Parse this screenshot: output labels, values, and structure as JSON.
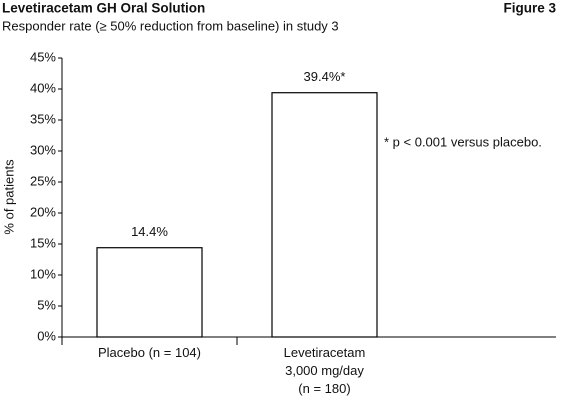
{
  "chart_data": {
    "type": "bar",
    "title": "Levetiracetam GH Oral Solution",
    "figure_label": "Figure 3",
    "subtitle": "Responder rate (≥ 50% reduction from baseline) in study 3",
    "y_label": "% of patients",
    "annotation": "* p < 0.001 versus placebo.",
    "categories": [
      "Placebo (n = 104)",
      "Levetiracetam\n3,000 mg/day\n(n = 180)"
    ],
    "values": [
      14.4,
      39.4
    ],
    "value_labels": [
      "14.4%",
      "39.4%*"
    ],
    "color": "#ffffff",
    "ylim": [
      0,
      45
    ],
    "yticks": [
      {
        "value": 0,
        "label": "0%"
      },
      {
        "value": 5,
        "label": "5%"
      },
      {
        "value": 10,
        "label": "10%"
      },
      {
        "value": 15,
        "label": "15%"
      },
      {
        "value": 20,
        "label": "20%"
      },
      {
        "value": 25,
        "label": "25%"
      },
      {
        "value": 30,
        "label": "30%"
      },
      {
        "value": 35,
        "label": "35%"
      },
      {
        "value": 40,
        "label": "40%"
      },
      {
        "value": 45,
        "label": "45%"
      }
    ],
    "grid": false
  }
}
